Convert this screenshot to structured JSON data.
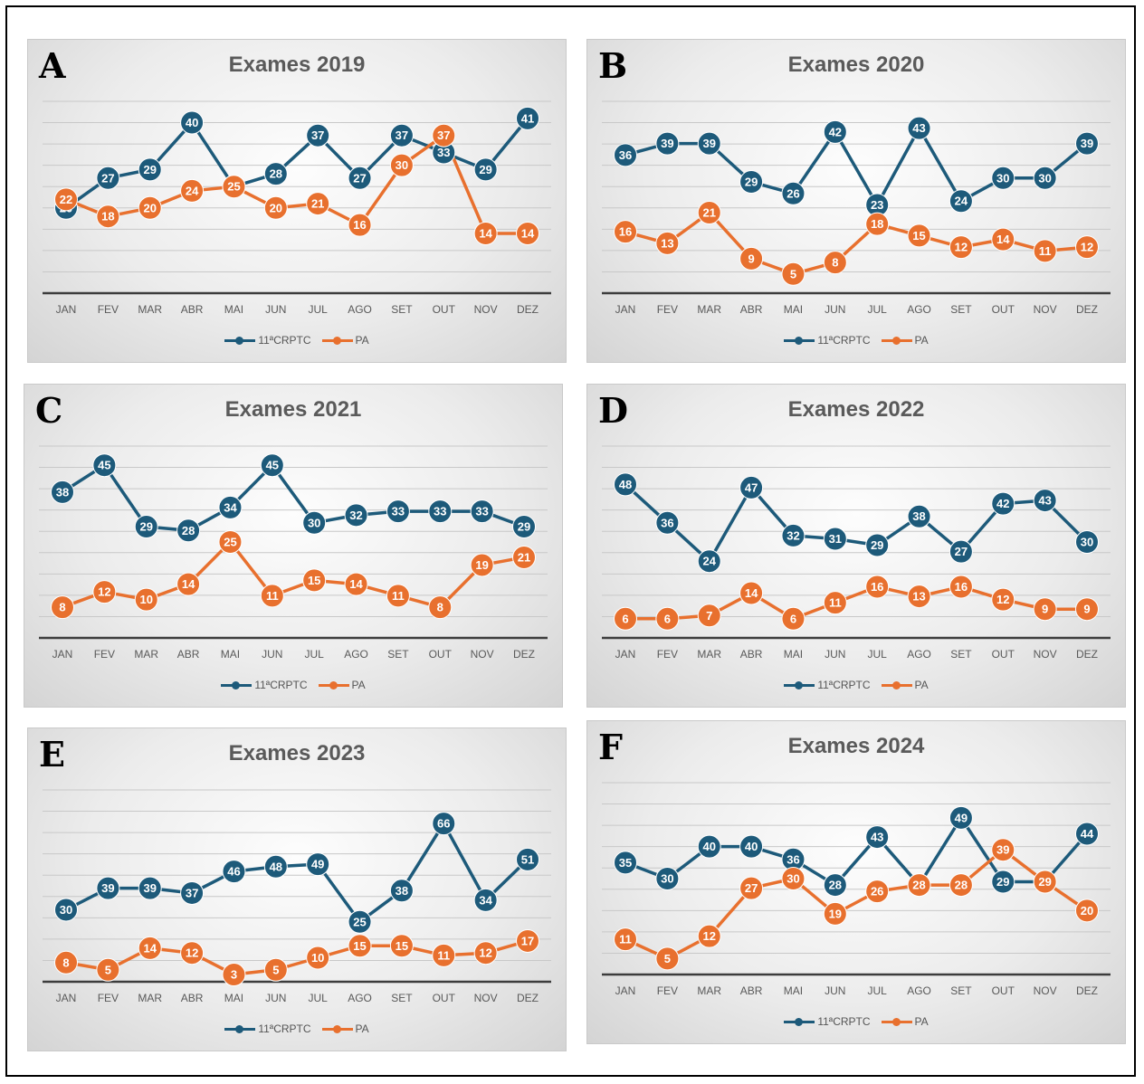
{
  "months": [
    "JAN",
    "FEV",
    "MAR",
    "ABR",
    "MAI",
    "JUN",
    "JUL",
    "AGO",
    "SET",
    "OUT",
    "NOV",
    "DEZ"
  ],
  "colors": {
    "series_1": "#1d5a7a",
    "series_2": "#e8702e"
  },
  "legend": {
    "series_1": "11ªCRPTC",
    "series_2": "PA"
  },
  "chart_data": [
    {
      "type": "line",
      "letter": "A",
      "title": "Exames 2019",
      "categories": [
        "JAN",
        "FEV",
        "MAR",
        "ABR",
        "MAI",
        "JUN",
        "JUL",
        "AGO",
        "SET",
        "OUT",
        "NOV",
        "DEZ"
      ],
      "series": [
        {
          "name": "11ªCRPTC",
          "values": [
            20,
            27,
            29,
            40,
            25,
            28,
            37,
            27,
            37,
            33,
            29,
            41
          ]
        },
        {
          "name": "PA",
          "values": [
            22,
            18,
            20,
            24,
            25,
            20,
            21,
            16,
            30,
            37,
            14,
            14
          ]
        }
      ],
      "ylim": [
        0,
        45
      ],
      "grid": true,
      "legend_position": "bottom"
    },
    {
      "type": "line",
      "letter": "B",
      "title": "Exames 2020",
      "categories": [
        "JAN",
        "FEV",
        "MAR",
        "ABR",
        "MAI",
        "JUN",
        "JUL",
        "AGO",
        "SET",
        "OUT",
        "NOV",
        "DEZ"
      ],
      "series": [
        {
          "name": "11ªCRPTC",
          "values": [
            36,
            39,
            39,
            29,
            26,
            42,
            23,
            43,
            24,
            30,
            30,
            39
          ]
        },
        {
          "name": "PA",
          "values": [
            16,
            13,
            21,
            9,
            5,
            8,
            18,
            15,
            12,
            14,
            11,
            12
          ]
        }
      ],
      "ylim": [
        0,
        50
      ],
      "grid": true,
      "legend_position": "bottom"
    },
    {
      "type": "line",
      "letter": "C",
      "title": "Exames 2021",
      "categories": [
        "JAN",
        "FEV",
        "MAR",
        "ABR",
        "MAI",
        "JUN",
        "JUL",
        "AGO",
        "SET",
        "OUT",
        "NOV",
        "DEZ"
      ],
      "series": [
        {
          "name": "11ªCRPTC",
          "values": [
            38,
            45,
            29,
            28,
            34,
            45,
            30,
            32,
            33,
            33,
            33,
            29
          ]
        },
        {
          "name": "PA",
          "values": [
            8,
            12,
            10,
            14,
            25,
            11,
            15,
            14,
            11,
            8,
            19,
            21
          ]
        }
      ],
      "ylim": [
        0,
        50
      ],
      "grid": true,
      "legend_position": "bottom"
    },
    {
      "type": "line",
      "letter": "D",
      "title": "Exames 2022",
      "categories": [
        "JAN",
        "FEV",
        "MAR",
        "ABR",
        "MAI",
        "JUN",
        "JUL",
        "AGO",
        "SET",
        "OUT",
        "NOV",
        "DEZ"
      ],
      "series": [
        {
          "name": "11ªCRPTC",
          "values": [
            48,
            36,
            24,
            47,
            32,
            31,
            29,
            38,
            27,
            42,
            43,
            30
          ]
        },
        {
          "name": "PA",
          "values": [
            6,
            6,
            7,
            14,
            6,
            11,
            16,
            13,
            16,
            12,
            9,
            9
          ]
        }
      ],
      "ylim": [
        0,
        60
      ],
      "grid": true,
      "legend_position": "bottom"
    },
    {
      "type": "line",
      "letter": "E",
      "title": "Exames 2023",
      "categories": [
        "JAN",
        "FEV",
        "MAR",
        "ABR",
        "MAI",
        "JUN",
        "JUL",
        "AGO",
        "SET",
        "OUT",
        "NOV",
        "DEZ"
      ],
      "series": [
        {
          "name": "11ªCRPTC",
          "values": [
            30,
            39,
            39,
            37,
            46,
            48,
            49,
            25,
            38,
            66,
            34,
            51
          ]
        },
        {
          "name": "PA",
          "values": [
            8,
            5,
            14,
            12,
            3,
            5,
            10,
            15,
            15,
            11,
            12,
            17
          ]
        }
      ],
      "ylim": [
        0,
        80
      ],
      "grid": true,
      "legend_position": "bottom"
    },
    {
      "type": "line",
      "letter": "F",
      "title": "Exames 2024",
      "categories": [
        "JAN",
        "FEV",
        "MAR",
        "ABR",
        "MAI",
        "JUN",
        "JUL",
        "AGO",
        "SET",
        "OUT",
        "NOV",
        "DEZ"
      ],
      "series": [
        {
          "name": "11ªCRPTC",
          "values": [
            35,
            30,
            40,
            40,
            36,
            28,
            43,
            28,
            49,
            29,
            29,
            44
          ]
        },
        {
          "name": "PA",
          "values": [
            11,
            5,
            12,
            27,
            30,
            19,
            26,
            28,
            28,
            39,
            29,
            20
          ]
        }
      ],
      "ylim": [
        0,
        60
      ],
      "grid": true,
      "legend_position": "bottom"
    }
  ]
}
